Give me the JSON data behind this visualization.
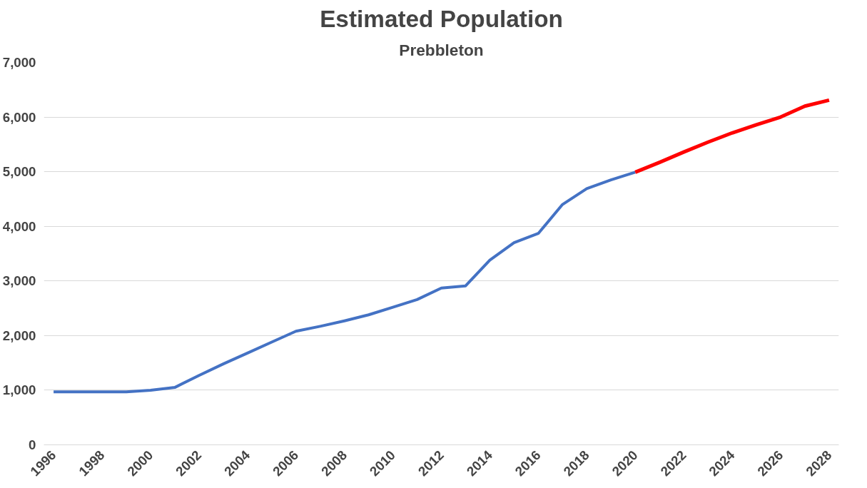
{
  "chart_data": {
    "type": "line",
    "title": "Estimated Population",
    "subtitle": "Prebbleton",
    "series": [
      {
        "color": "#4472c4",
        "x": [
          1996,
          1997,
          1998,
          1999,
          2000,
          2001,
          2002,
          2003,
          2004,
          2005,
          2006,
          2007,
          2008,
          2009,
          2010,
          2011,
          2012,
          2013,
          2014,
          2015,
          2016,
          2017,
          2018,
          2019,
          2020
        ],
        "values": [
          970,
          970,
          970,
          970,
          1000,
          1050,
          1270,
          1480,
          1680,
          1880,
          2080,
          2170,
          2270,
          2380,
          2520,
          2660,
          2870,
          2910,
          3380,
          3700,
          3870,
          4400,
          4690,
          4850,
          4990
        ]
      },
      {
        "color": "#ff0000",
        "x": [
          2020,
          2021,
          2022,
          2023,
          2024,
          2025,
          2026,
          2027,
          2028
        ],
        "values": [
          4990,
          5170,
          5360,
          5540,
          5710,
          5860,
          6000,
          6200,
          6310
        ]
      }
    ],
    "xlim": [
      1995.6,
      2028.4
    ],
    "xticks": [
      1996,
      1998,
      2000,
      2002,
      2004,
      2006,
      2008,
      2010,
      2012,
      2014,
      2016,
      2018,
      2020,
      2022,
      2024,
      2026,
      2028
    ],
    "ylim": [
      0,
      7000
    ],
    "yticks": [
      0,
      {
        "value": 1000,
        "label": "1,000"
      },
      {
        "value": 2000,
        "label": "2,000"
      },
      {
        "value": 3000,
        "label": "3,000"
      },
      {
        "value": 4000,
        "label": "4,000"
      },
      {
        "value": 5000,
        "label": "5,000"
      },
      {
        "value": 6000,
        "label": "6,000"
      },
      {
        "value": 7000,
        "label": "7,000"
      }
    ],
    "grid": "y",
    "marker": "none",
    "line_style": "solid"
  }
}
